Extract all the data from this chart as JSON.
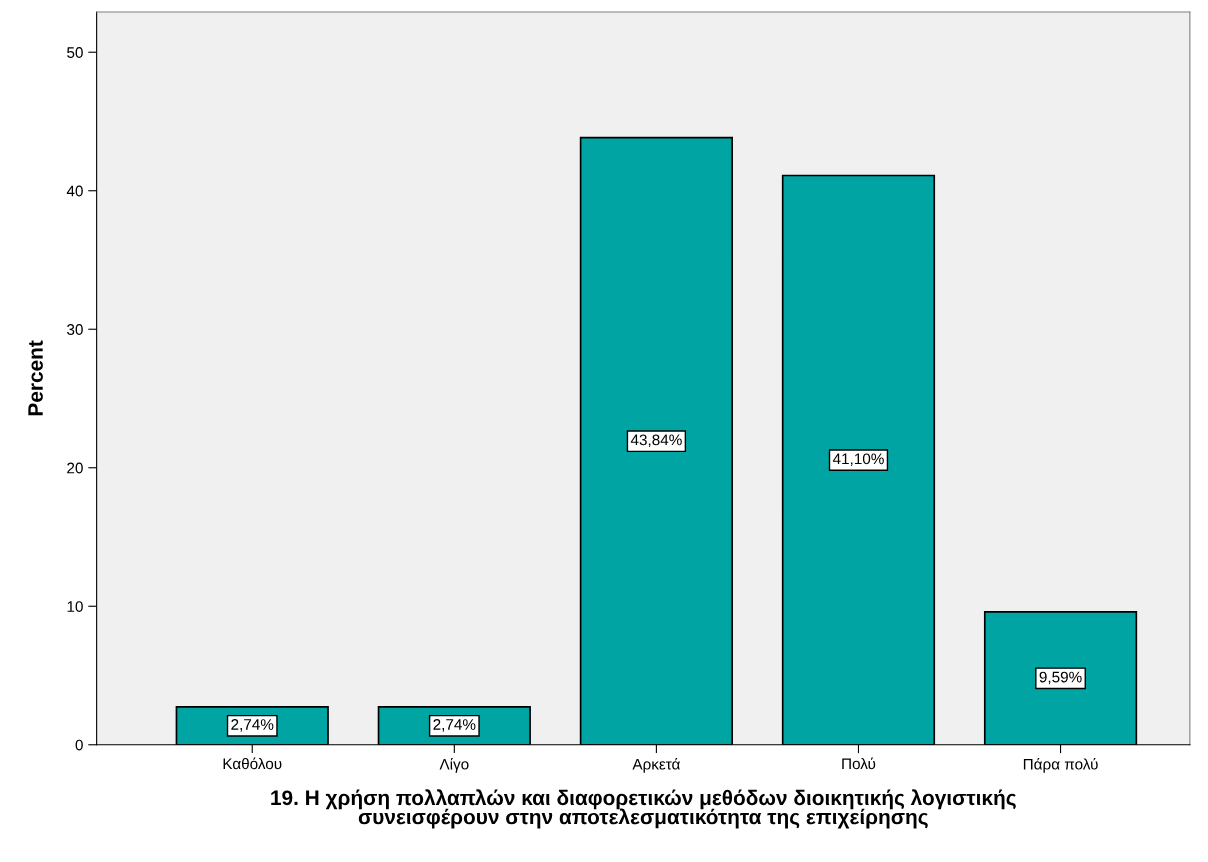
{
  "chart_data": {
    "type": "bar",
    "categories": [
      "Καθόλου",
      "Λίγο",
      "Αρκετά",
      "Πολύ",
      "Πάρα πολύ"
    ],
    "values": [
      2.74,
      2.74,
      43.84,
      41.1,
      9.59
    ],
    "value_labels": [
      "2,74%",
      "2,74%",
      "43,84%",
      "41,10%",
      "9,59%"
    ],
    "color": "#00a5a3",
    "xlabel": "19. Η χρήση πολλαπλών και διαφορετικών μεθόδων διοικητικής λογιστικής\nσυνεισφέρουν στην αποτελεσματικότητα της επιχείρησης",
    "ylabel": "Percent",
    "ylim": [
      0,
      52.9
    ],
    "yticks": [
      0,
      10,
      20,
      30,
      40,
      50
    ],
    "grid": false,
    "legend": false
  }
}
